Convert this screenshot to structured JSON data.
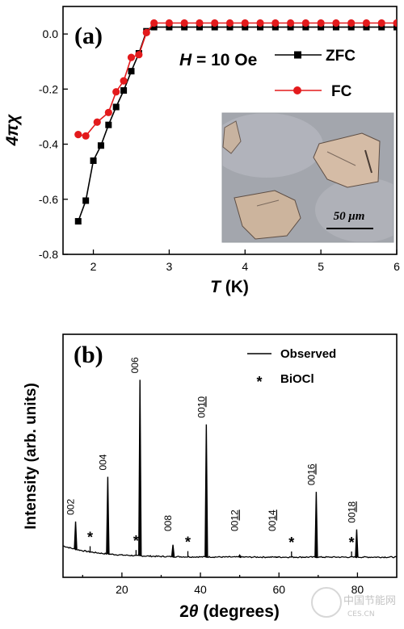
{
  "watermark": {
    "cn": "中国节能网",
    "url": "CES.CN"
  },
  "chart_data": [
    {
      "panel": "(a)",
      "type": "line",
      "annotation": {
        "italic": "H",
        "text": " = 10 Oe"
      },
      "xlabel": {
        "italic": "T",
        "text": " (K)"
      },
      "ylabel": "4πχ",
      "xlim": [
        1.6,
        6
      ],
      "ylim": [
        -0.8,
        0.1
      ],
      "xticks": [
        "2",
        "3",
        "4",
        "5",
        "6"
      ],
      "xtick_values": [
        2,
        3,
        4,
        5,
        6
      ],
      "yticks": [
        "0.0",
        "-0.2",
        "-0.4",
        "-0.6",
        "-0.8"
      ],
      "ytick_values": [
        0.0,
        -0.2,
        -0.4,
        -0.6,
        -0.8
      ],
      "legend": [
        "ZFC",
        "FC"
      ],
      "legend_placement": "top-right",
      "series": [
        {
          "name": "ZFC",
          "color": "#000000",
          "marker": "square",
          "x": [
            1.8,
            1.9,
            2.0,
            2.1,
            2.2,
            2.3,
            2.4,
            2.5,
            2.6,
            2.7,
            2.8,
            3.0,
            3.2,
            3.4,
            3.6,
            3.8,
            4.0,
            4.2,
            4.4,
            4.6,
            4.8,
            5.0,
            5.2,
            5.4,
            5.6,
            5.8,
            6.0
          ],
          "y": [
            -0.68,
            -0.605,
            -0.46,
            -0.405,
            -0.33,
            -0.265,
            -0.205,
            -0.135,
            -0.07,
            0.01,
            0.025,
            0.025,
            0.025,
            0.025,
            0.025,
            0.025,
            0.025,
            0.025,
            0.025,
            0.025,
            0.025,
            0.025,
            0.025,
            0.025,
            0.025,
            0.025,
            0.025
          ]
        },
        {
          "name": "FC",
          "color": "#e31a1c",
          "marker": "circle",
          "x": [
            1.8,
            1.9,
            2.05,
            2.2,
            2.3,
            2.4,
            2.5,
            2.6,
            2.7,
            2.8,
            3.0,
            3.2,
            3.4,
            3.6,
            3.8,
            4.0,
            4.2,
            4.4,
            4.6,
            4.8,
            5.0,
            5.2,
            5.4,
            5.6,
            5.8,
            6.0
          ],
          "y": [
            -0.365,
            -0.37,
            -0.32,
            -0.285,
            -0.21,
            -0.17,
            -0.085,
            -0.075,
            0.005,
            0.04,
            0.04,
            0.04,
            0.04,
            0.04,
            0.04,
            0.04,
            0.04,
            0.04,
            0.04,
            0.04,
            0.04,
            0.04,
            0.04,
            0.04,
            0.04,
            0.04
          ]
        }
      ],
      "inset": {
        "type": "micrograph",
        "scale_bar": "50 μm"
      }
    },
    {
      "panel": "(b)",
      "type": "line",
      "xlabel": {
        "prefix": "2",
        "italic": "θ",
        "text": " (degrees)"
      },
      "ylabel": "Intensity (arb. units)",
      "xlim": [
        5,
        90
      ],
      "xticks": [
        "20",
        "40",
        "60",
        "80"
      ],
      "xtick_values": [
        20,
        40,
        60,
        80
      ],
      "legend": [
        "Observed",
        "BiOCl"
      ],
      "legend_placement": "top-right",
      "legend_markers": [
        "line",
        "*"
      ],
      "peaks": [
        {
          "label": "002",
          "x": 8.2,
          "height": 0.14
        },
        {
          "label": "004",
          "x": 16.4,
          "height": 0.39
        },
        {
          "label": "006",
          "x": 24.6,
          "height": 0.89
        },
        {
          "label": "008",
          "x": 33.0,
          "height": 0.06
        },
        {
          "label": "0010",
          "x": 41.5,
          "height": 0.67
        },
        {
          "label": "0012",
          "x": 50.0,
          "height": 0.01
        },
        {
          "label": "0014",
          "x": 59.5,
          "height": 0.0
        },
        {
          "label": "0016",
          "x": 69.5,
          "height": 0.33
        },
        {
          "label": "0018",
          "x": 79.8,
          "height": 0.14
        }
      ],
      "impurity_marks": [
        {
          "label": "*",
          "x": 11.9
        },
        {
          "label": "*",
          "x": 23.6
        },
        {
          "label": "*",
          "x": 36.8
        },
        {
          "label": "*",
          "x": 63.2
        },
        {
          "label": "*",
          "x": 78.5
        }
      ]
    }
  ]
}
